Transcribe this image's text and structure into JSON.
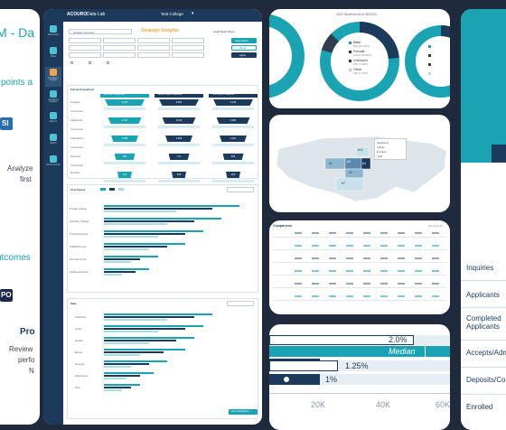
{
  "left_card": {
    "title_fragment": "M - Da",
    "points_text": "l points a",
    "badge1": "SI",
    "analyze_line1": "Analyze",
    "analyze_line2": "first",
    "outcomes_text": "utcomes",
    "badge2": "PO",
    "pro_text": "Pro",
    "review_line1": "Review",
    "review_line2": "perfo",
    "review_line3": "N"
  },
  "dashboard": {
    "app_title": "Data Lab",
    "brand": "ACOURO",
    "school_select": "Test College",
    "sidebar": [
      {
        "label": "Data Library"
      },
      {
        "label": "Filters"
      },
      {
        "label": "Enrollment Insights"
      },
      {
        "label": "Admissions Analytics"
      },
      {
        "label": "Reports"
      },
      {
        "label": "Search"
      },
      {
        "label": "Admin Controls"
      }
    ],
    "strategic_select": "Strategic Overview",
    "insights_title": "Strategic Insights",
    "load_filters": "Load Saved Filters",
    "save_filters_btn": "Save Filters",
    "reset_btn": "Reset",
    "apply_btn": "Apply",
    "funnel_title": "Funnel Comparison",
    "col_headers": [
      "First Class Comparison",
      "Recent Funnel Comparison",
      "Peer Funnel Comparison"
    ],
    "row_labels": [
      "Inquiries",
      "Conversion",
      "Applicants",
      "Conversion",
      "Admissions",
      "Conversion",
      "Deposits",
      "Conversion",
      "Enrolled"
    ],
    "funnel_values": [
      [
        "4,215",
        "5,902",
        "6,120"
      ],
      [
        "2,740",
        "3,105",
        "3,480"
      ],
      [
        "1,628",
        "1,906",
        "2,251"
      ],
      [
        "683",
        "712",
        "845"
      ],
      [
        "412",
        "498",
        "520"
      ]
    ],
    "chart1_title": "First Source",
    "chart1_rows": [
      "Private College",
      "Christian College",
      "Purchased Lists",
      "CIRP/RG Lists",
      "SS Fast Forum",
      "Online Applicant"
    ],
    "chart2_title": "State",
    "chart2_rows": [
      "California",
      "Texas",
      "Florida",
      "Illinois",
      "Georgia",
      "Washington",
      "Ohio"
    ],
    "bottom_btn": "Add to Dashboard"
  },
  "donuts": {
    "center_title": "2023 Students as of 08/2023",
    "legend": [
      {
        "label": "Male",
        "value": "500 (23.42%)"
      },
      {
        "label": "Female",
        "value": "1,320 (61.83%)"
      },
      {
        "label": "Unknown",
        "value": "150 (7.03%)"
      },
      {
        "label": "Other",
        "value": "165 (7.73%)"
      }
    ],
    "colors": {
      "teal": "#1aa3b3",
      "navy": "#1b3a5c",
      "dark": "#2c3e50",
      "light": "#a8dde4"
    }
  },
  "map": {
    "regions": [
      "#12",
      "#3",
      "#1",
      "#4",
      "#2",
      "#7"
    ],
    "tooltip_rows": [
      "Applicants",
      "Admits",
      "Enrolled",
      "Yield"
    ]
  },
  "table": {
    "title": "Comparison",
    "header_right": "Showing 10"
  },
  "median_chart": {
    "bars": [
      {
        "value_label": "2.0%"
      },
      {
        "value_label": "Median"
      },
      {
        "value_label": "1.25%"
      },
      {
        "value_label": "1%"
      }
    ],
    "x_ticks": [
      "20K",
      "40K",
      "60K"
    ]
  },
  "right_card": {
    "rows": [
      "Inquiries",
      "Applicants",
      "Completed Applicants",
      "Accepts/Adm",
      "Deposits/Co",
      "Enrolled"
    ]
  }
}
